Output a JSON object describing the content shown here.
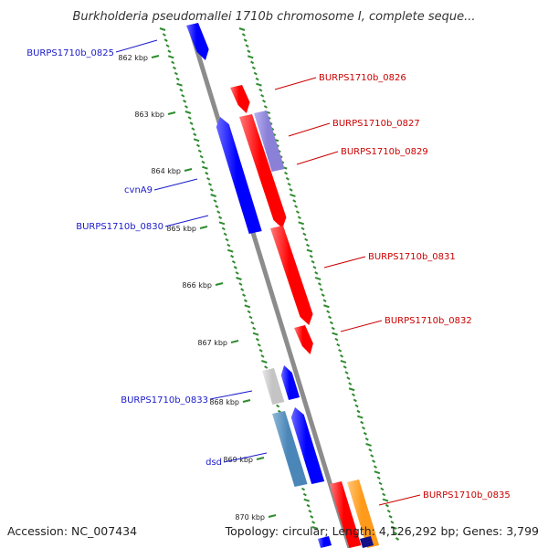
{
  "title": "Burkholderia pseudomallei 1710b chromosome I, complete seque...",
  "footer": {
    "accession": "Accession: NC_007434",
    "summary": "Topology: circular; Length: 4,126,292 bp; Genes: 3,799"
  },
  "ruler": [
    "862 kbp",
    "863 kbp",
    "864 kbp",
    "865 kbp",
    "866 kbp",
    "867 kbp",
    "868 kbp",
    "869 kbp",
    "870 kbp"
  ],
  "left_genes": [
    "BURPS1710b_0825",
    "cvnA9",
    "BURPS1710b_0830",
    "BURPS1710b_0833",
    "dsd"
  ],
  "right_genes": [
    "BURPS1710b_0826",
    "BURPS1710b_0827",
    "BURPS1710b_0829",
    "BURPS1710b_0831",
    "BURPS1710b_0832",
    "BURPS1710b_0835"
  ],
  "colors": {
    "reverse_strand": "#0000ff",
    "forward_strand": "#ff0000",
    "purple": "#8a80d8",
    "gray": "#c4c4c4",
    "steelblue": "#4a86b8",
    "orange": "#ff9a1a",
    "backbone": "#8c8c8c",
    "ticks": "#2e8b2e",
    "left_label": "#1a1acc",
    "right_label": "#cc0000"
  }
}
